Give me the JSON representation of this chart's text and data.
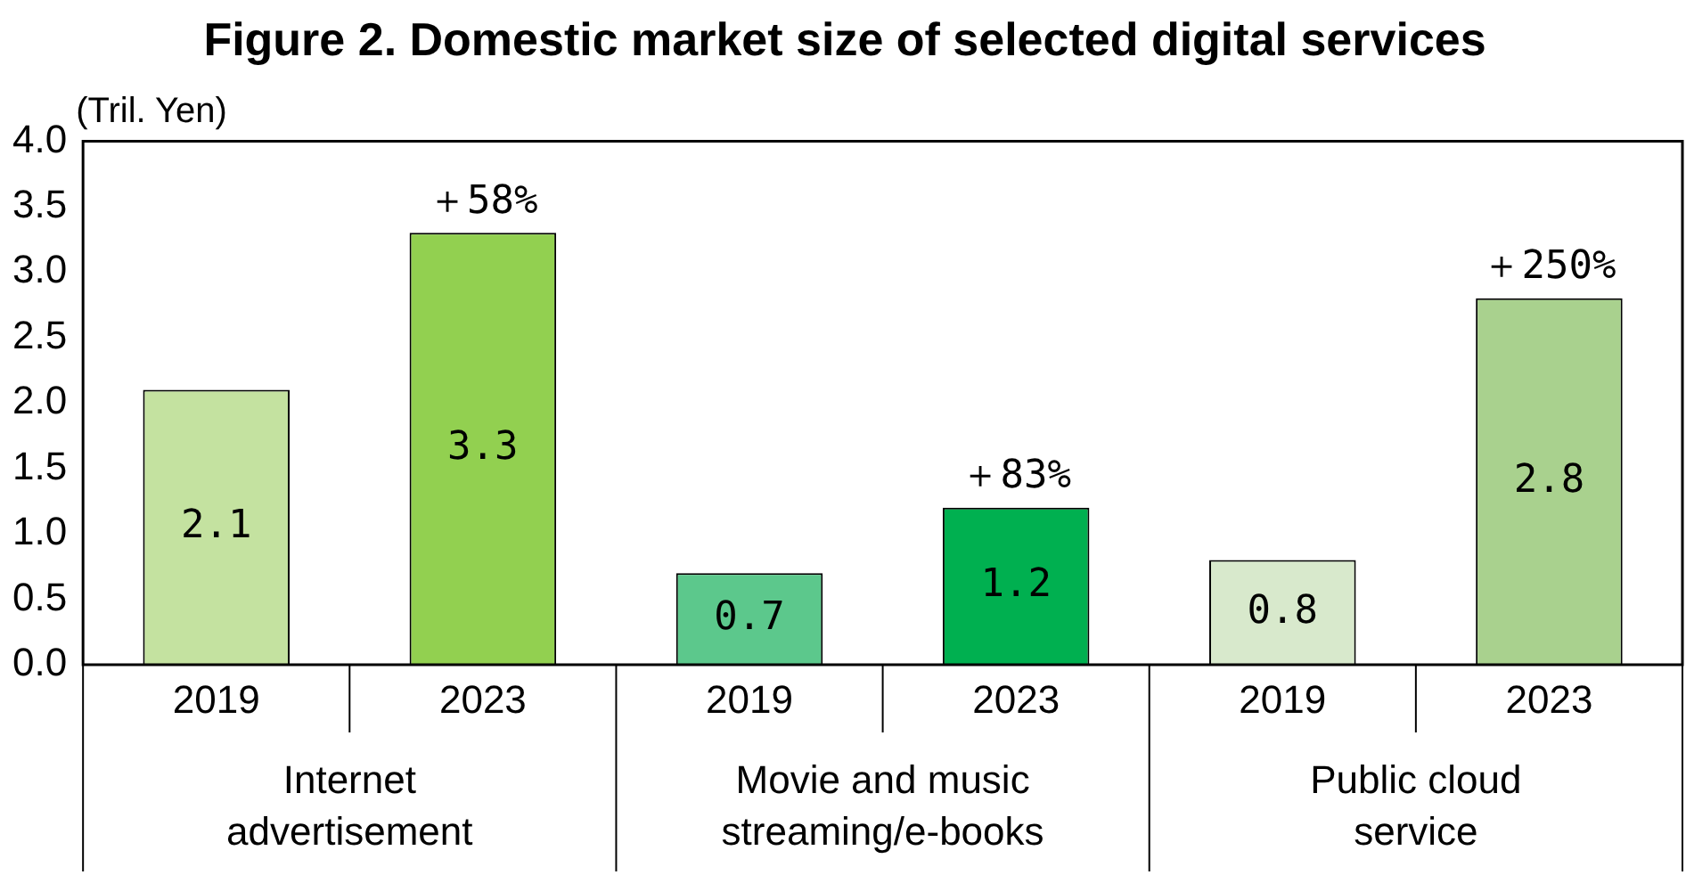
{
  "chart_data": {
    "type": "bar",
    "title": "Figure 2. Domestic market size of selected digital services",
    "ylabel": "(Tril. Yen)",
    "categories": [
      "Internet advertisement",
      "Movie and music streaming/e-books",
      "Public cloud service"
    ],
    "series": [
      {
        "name": "2019",
        "colors": [
          "#c4e2a0",
          "#5cc88c",
          "#d8e9cc"
        ],
        "values": [
          2.1,
          0.7,
          0.8
        ]
      },
      {
        "name": "2023",
        "colors": [
          "#92d050",
          "#00b050",
          "#a9d18e"
        ],
        "values": [
          3.3,
          1.2,
          2.8
        ]
      }
    ],
    "ylim": [
      0,
      4
    ],
    "yticks": [
      {
        "value": 0,
        "label": "0.0"
      },
      {
        "value": 0.5,
        "label": "0.5"
      },
      {
        "value": 1,
        "label": "1.0"
      },
      {
        "value": 1.5,
        "label": "1.5"
      },
      {
        "value": 2,
        "label": "2.0"
      },
      {
        "value": 2.5,
        "label": "2.5"
      },
      {
        "value": 3,
        "label": "3.0"
      },
      {
        "value": 3.5,
        "label": "3.5"
      },
      {
        "value": 4,
        "label": "4.0"
      }
    ],
    "data_labels": true,
    "legend": false,
    "grid": false,
    "annotations": [
      "＋58%",
      "＋83%",
      "＋250%"
    ]
  }
}
